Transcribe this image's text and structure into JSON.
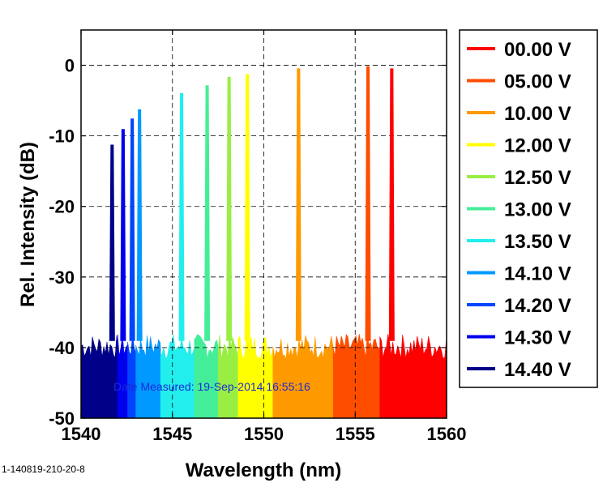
{
  "chart_data": {
    "type": "line",
    "title": "",
    "xlabel": "Wavelength (nm)",
    "ylabel": "Rel. Intensity (dB)",
    "xlim": [
      1540,
      1560
    ],
    "ylim": [
      -50,
      5
    ],
    "xticks": [
      1540,
      1545,
      1550,
      1555,
      1560
    ],
    "yticks": [
      0,
      -10,
      -20,
      -30,
      -40,
      -50
    ],
    "grid": "dashed",
    "legend_position": "right-outside",
    "noise_floor_db": -40,
    "series": [
      {
        "name": "00.00 V",
        "color": "#ff0000",
        "peak_wavelength_nm": 1557.0,
        "peak_db": -0.5
      },
      {
        "name": "05.00 V",
        "color": "#ff4d00",
        "peak_wavelength_nm": 1555.7,
        "peak_db": -0.2
      },
      {
        "name": "10.00 V",
        "color": "#ff9900",
        "peak_wavelength_nm": 1551.9,
        "peak_db": -0.5
      },
      {
        "name": "12.00 V",
        "color": "#ffff00",
        "peak_wavelength_nm": 1549.1,
        "peak_db": -1.3
      },
      {
        "name": "12.50 V",
        "color": "#99ee44",
        "peak_wavelength_nm": 1548.1,
        "peak_db": -1.7
      },
      {
        "name": "13.00 V",
        "color": "#44ee99",
        "peak_wavelength_nm": 1546.9,
        "peak_db": -2.9
      },
      {
        "name": "13.50 V",
        "color": "#22eeee",
        "peak_wavelength_nm": 1545.5,
        "peak_db": -4.0
      },
      {
        "name": "14.10 V",
        "color": "#0099ff",
        "peak_wavelength_nm": 1543.2,
        "peak_db": -6.3
      },
      {
        "name": "14.20 V",
        "color": "#0044ff",
        "peak_wavelength_nm": 1542.8,
        "peak_db": -7.6
      },
      {
        "name": "14.30 V",
        "color": "#0000ee",
        "peak_wavelength_nm": 1542.3,
        "peak_db": -9.1
      },
      {
        "name": "14.40 V",
        "color": "#000088",
        "peak_wavelength_nm": 1541.7,
        "peak_db": -11.3
      }
    ],
    "annotation": "Date Measured: 19-Sep-2014 16:55:16",
    "corner_id": "1-140819-210-20-8"
  }
}
